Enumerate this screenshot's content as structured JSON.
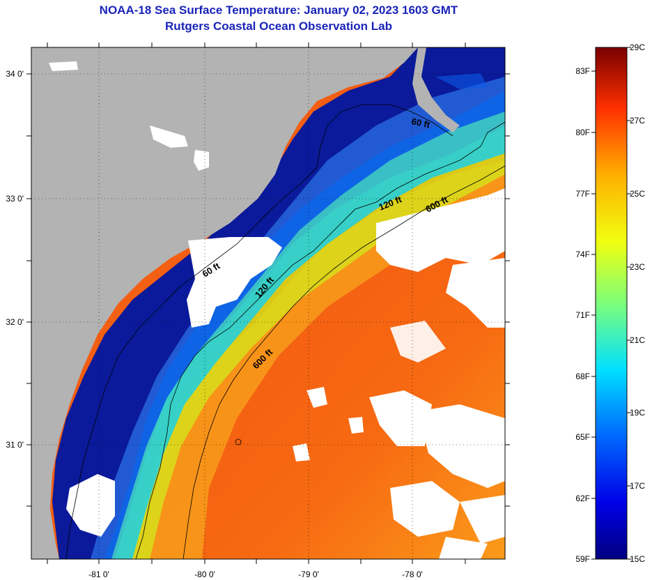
{
  "title": "NOAA-18 Sea Surface Temperature:  January 02, 2023 1603 GMT",
  "subtitle": "Rutgers Coastal Ocean Observation Lab",
  "map": {
    "lat_labels": [
      {
        "value": 34,
        "text": "34 0'"
      },
      {
        "value": 33,
        "text": "33 0'"
      },
      {
        "value": 32,
        "text": "32 0'"
      },
      {
        "value": 31,
        "text": "31 0'"
      }
    ],
    "lon_labels": [
      {
        "value": -81,
        "text": "-81 0'"
      },
      {
        "value": -80,
        "text": "-80 0'"
      },
      {
        "value": -79,
        "text": "-79 0'"
      },
      {
        "value": -78,
        "text": "-78 0'"
      }
    ],
    "contour_labels": [
      "60 ft",
      "120 ft",
      "600 ft",
      "60 ft",
      "120 ft",
      "600 ft"
    ],
    "colors": {
      "land": "#b3b3b3",
      "cloud": "#ffffff",
      "cold": "#0a1a9a",
      "warm": "#f05a14"
    }
  },
  "colorbar": {
    "min_c": 15,
    "max_c": 29,
    "celsius_labels": [
      "29C",
      "27C",
      "25C",
      "23C",
      "21C",
      "19C",
      "17C",
      "15C"
    ],
    "fahrenheit_labels": [
      "83F",
      "80F",
      "77F",
      "74F",
      "71F",
      "68F",
      "65F",
      "62F",
      "59F"
    ]
  }
}
